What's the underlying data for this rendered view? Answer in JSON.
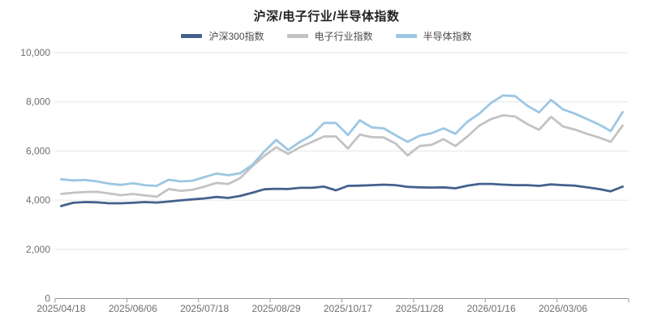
{
  "title": "沪深/电子行业/半导体指数",
  "colors": {
    "csi300": "#44618D",
    "electronics": "#C3C3C3",
    "semiconductor": "#9CC7E3",
    "grid": "#E6E6E6",
    "axis": "#999999",
    "axis_text": "#6E6E6E",
    "title_text": "#222222",
    "legend_text": "#4A4A4A",
    "background": "#FFFFFF"
  },
  "chart_data": {
    "type": "line",
    "title": "沪深/电子行业/半导体指数",
    "x_tick_labels": [
      "2025/04/18",
      "2025/06/06",
      "2025/07/18",
      "2025/08/29",
      "2025/10/17",
      "2025/11/28",
      "2026/01/16",
      "2026/03/06"
    ],
    "x_label_every_n_points": 6,
    "y_tick_labels": [
      "0",
      "2,000",
      "4,000",
      "6,000",
      "8,000",
      "10,000"
    ],
    "y_ticks": [
      0,
      2000,
      4000,
      6000,
      8000,
      10000
    ],
    "ylim": [
      0,
      10000
    ],
    "grid": "horizontal-only",
    "legend_position": "top-center",
    "n_points": 48,
    "series": [
      {
        "name": "沪深300指数",
        "color": "#44618D",
        "values": [
          3760,
          3890,
          3920,
          3910,
          3870,
          3870,
          3890,
          3920,
          3900,
          3940,
          3990,
          4030,
          4070,
          4130,
          4090,
          4170,
          4300,
          4440,
          4460,
          4450,
          4500,
          4500,
          4550,
          4400,
          4580,
          4590,
          4610,
          4630,
          4610,
          4540,
          4520,
          4510,
          4520,
          4480,
          4590,
          4660,
          4660,
          4630,
          4610,
          4610,
          4580,
          4640,
          4610,
          4590,
          4520,
          4450,
          4360,
          4550
        ]
      },
      {
        "name": "电子行业指数",
        "color": "#C3C3C3",
        "values": [
          4250,
          4300,
          4330,
          4340,
          4270,
          4200,
          4250,
          4190,
          4140,
          4450,
          4380,
          4420,
          4550,
          4700,
          4660,
          4900,
          5380,
          5800,
          6150,
          5880,
          6150,
          6370,
          6590,
          6590,
          6100,
          6670,
          6560,
          6550,
          6300,
          5820,
          6200,
          6250,
          6480,
          6200,
          6590,
          7030,
          7300,
          7450,
          7400,
          7100,
          6860,
          7390,
          7000,
          6870,
          6700,
          6550,
          6370,
          7030
        ]
      },
      {
        "name": "半导体指数",
        "color": "#9CC7E3",
        "values": [
          4850,
          4800,
          4820,
          4760,
          4670,
          4620,
          4690,
          4610,
          4580,
          4830,
          4760,
          4790,
          4940,
          5080,
          5010,
          5100,
          5430,
          5980,
          6450,
          6040,
          6370,
          6650,
          7140,
          7140,
          6650,
          7250,
          6960,
          6920,
          6640,
          6370,
          6620,
          6720,
          6920,
          6700,
          7190,
          7520,
          7960,
          8260,
          8230,
          7850,
          7570,
          8080,
          7690,
          7520,
          7300,
          7080,
          6810,
          7580
        ]
      }
    ]
  }
}
